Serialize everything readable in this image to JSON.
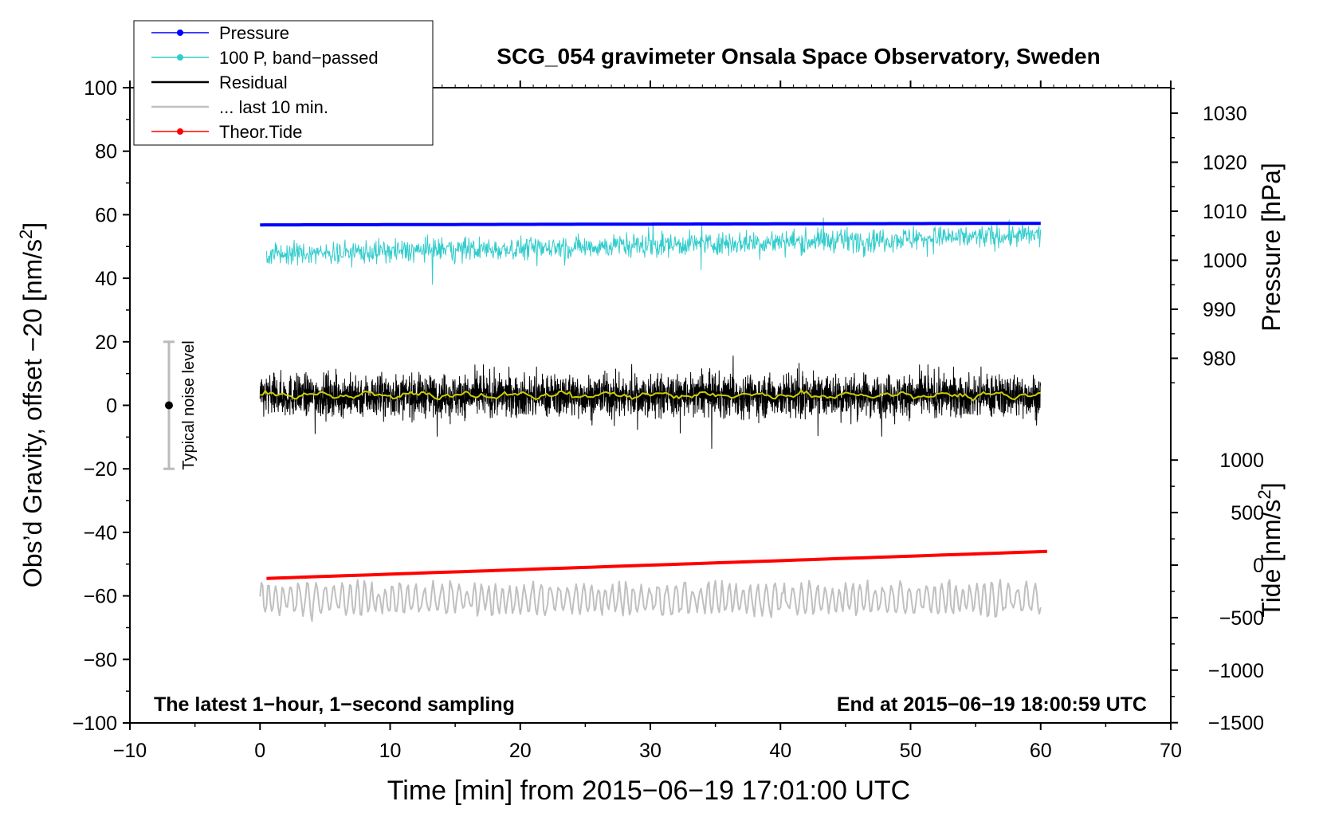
{
  "chart_data": {
    "type": "line",
    "title": "SCG_054 gravimeter Onsala Space Observatory, Sweden",
    "xlabel": "Time [min] from 2015−06−19 17:01:00 UTC",
    "ylabel_left": "Obs’d Gravity, offset −20 [nm/s²]",
    "ylabel_right_top": "Pressure [hPa]",
    "ylabel_right_bottom": "Tide [nm/s²]",
    "xlim": [
      -10,
      70
    ],
    "ylim_left": [
      -100,
      100
    ],
    "pressure_axis_ticks": [
      980,
      990,
      1000,
      1010,
      1020,
      1030
    ],
    "tide_axis_ticks": [
      -1500,
      -1000,
      -500,
      0,
      500,
      1000
    ],
    "x_ticks": [
      "−10",
      "0",
      "10",
      "20",
      "30",
      "40",
      "50",
      "60",
      "70"
    ],
    "x_tick_values": [
      -10,
      0,
      10,
      20,
      30,
      40,
      50,
      60,
      70
    ],
    "y_ticks_left": [
      "−100",
      "−80",
      "−60",
      "−40",
      "−20",
      "0",
      "20",
      "40",
      "60",
      "80",
      "100"
    ],
    "y_tick_values_left": [
      -100,
      -80,
      -60,
      -40,
      -20,
      0,
      20,
      40,
      60,
      80,
      100
    ],
    "pressure_tick_labels": [
      "980",
      "990",
      "1000",
      "1010",
      "1020",
      "1030"
    ],
    "tide_tick_labels": [
      "−1500",
      "−1000",
      "−500",
      "0",
      "500",
      "1000"
    ],
    "legend": {
      "placement": "top-left",
      "entries": [
        {
          "label": "Pressure",
          "color": "#0000ff",
          "marker": true
        },
        {
          "label": "100 P, band−passed",
          "color": "#33cccc",
          "marker": true
        },
        {
          "label": "Residual",
          "color": "#000000",
          "marker": false
        },
        {
          "label": "... last 10 min.",
          "color": "#c0c0c0",
          "marker": false
        },
        {
          "label": "Theor.Tide",
          "color": "#ff0000",
          "marker": true
        }
      ]
    },
    "annotations": {
      "noise_label": "Typical noise level",
      "noise_range": [
        -20,
        20
      ],
      "noise_center": 0,
      "noise_x": -7,
      "bottom_left": "The latest 1−hour, 1−second sampling",
      "bottom_right": "End at 2015−06−19 18:00:59 UTC"
    },
    "series": [
      {
        "name": "Pressure",
        "color": "#0000ff",
        "x_range": [
          0,
          60
        ],
        "y_start": 56.8,
        "y_end": 57.3,
        "units": "left-axis"
      },
      {
        "name": "100 P, band−passed",
        "color": "#33cccc",
        "x_range": [
          0.5,
          60
        ],
        "center_start": 47.5,
        "center_end": 53.5,
        "amplitude": 4,
        "units": "left-axis"
      },
      {
        "name": "Residual",
        "color": "#000000",
        "x_range": [
          0,
          60
        ],
        "center": 3,
        "amplitude": 7,
        "units": "left-axis"
      },
      {
        "name": "Residual (smoothed)",
        "color": "#cccc00",
        "x_range": [
          0,
          60
        ],
        "center": 3.2,
        "units": "left-axis"
      },
      {
        "name": "... last 10 min.",
        "color": "#c0c0c0",
        "x_range": [
          0,
          60
        ],
        "center": -61,
        "amplitude": 5,
        "units": "left-axis"
      },
      {
        "name": "Theor.Tide",
        "color": "#ff0000",
        "x_range": [
          0.5,
          60.5
        ],
        "y_start": -54.5,
        "y_end": -46,
        "units": "left-axis"
      }
    ]
  }
}
